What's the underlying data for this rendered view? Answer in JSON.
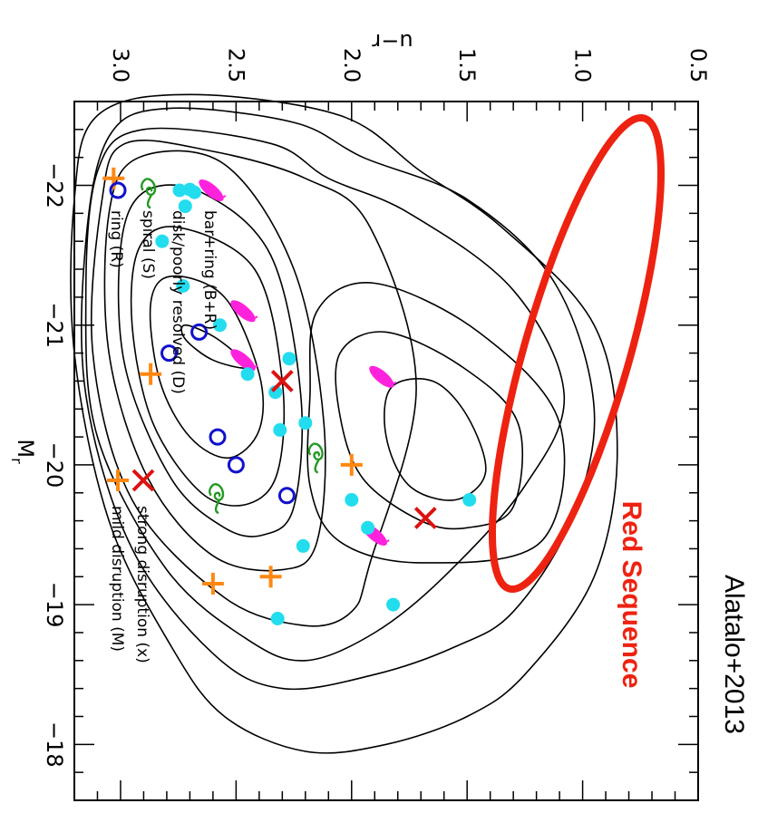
{
  "credit": "Alatalo+2013",
  "annotation_label": "Red Sequence",
  "colors": {
    "bar_ring": "#ff22dd",
    "disk": "#22ddee",
    "spiral": "#229922",
    "ring": "#1111cc",
    "strong": "#dd1111",
    "mild": "#ff8811",
    "red_sequence": "#ee2211",
    "contour": "#000000"
  },
  "chart_data": {
    "type": "scatter",
    "title": "",
    "xlabel": "M_r",
    "ylabel": "u−r",
    "xlabel_main": "M",
    "xlabel_sub": "r",
    "xlim": [
      -22.6,
      -17.6
    ],
    "ylim": [
      0.5,
      3.2
    ],
    "orientation": "rotated 90 degrees clockwise (M_r runs top to bottom, u−r runs right to left)",
    "xticks": [
      "−22",
      "−21",
      "−20",
      "−19",
      "−18"
    ],
    "yticks": [
      "0.5",
      "1.0",
      "1.5",
      "2.0",
      "2.5",
      "3.0"
    ],
    "legend": {
      "placement": "left",
      "entries": [
        {
          "key": "bar_ring",
          "label": "bar+ring (B+R)"
        },
        {
          "key": "disk",
          "label": "disk/poorly resolved (D)"
        },
        {
          "key": "spiral",
          "label": "spiral (S)"
        },
        {
          "key": "ring",
          "label": "ring (R)"
        }
      ],
      "disruption_entries": [
        {
          "key": "strong",
          "label": "strong disruption (x)"
        },
        {
          "key": "mild",
          "label": "mild disruption (M)"
        }
      ]
    },
    "series": [
      {
        "name": "bar+ring (B+R)",
        "marker": "bar_ring",
        "points": [
          [
            -21.1,
            2.47
          ],
          [
            -20.75,
            2.47
          ],
          [
            -20.63,
            1.87
          ],
          [
            -19.5,
            1.9
          ]
        ]
      },
      {
        "name": "disk/poorly resolved (D)",
        "marker": "disk",
        "points": [
          [
            -21.97,
            2.7
          ],
          [
            -21.95,
            2.68
          ],
          [
            -21.85,
            2.72
          ],
          [
            -21.6,
            2.82
          ],
          [
            -21.28,
            2.73
          ],
          [
            -21.0,
            2.57
          ],
          [
            -20.76,
            2.27
          ],
          [
            -20.65,
            2.45
          ],
          [
            -20.52,
            2.33
          ],
          [
            -20.3,
            2.2
          ],
          [
            -20.25,
            2.31
          ],
          [
            -19.75,
            2.0
          ],
          [
            -19.75,
            1.49
          ],
          [
            -19.55,
            1.93
          ],
          [
            -19.42,
            2.21
          ],
          [
            -19.0,
            1.82
          ],
          [
            -18.9,
            2.32
          ]
        ]
      },
      {
        "name": "spiral (S)",
        "marker": "spiral",
        "points": [
          [
            -20.07,
            2.15
          ],
          [
            -19.78,
            2.58
          ]
        ]
      },
      {
        "name": "ring (R)",
        "marker": "ring",
        "points": [
          [
            -20.95,
            2.66
          ],
          [
            -20.8,
            2.79
          ],
          [
            -20.0,
            2.5
          ],
          [
            -20.2,
            2.58
          ],
          [
            -19.78,
            2.28
          ]
        ]
      },
      {
        "name": "strong disruption (x)",
        "marker": "strong",
        "points": [
          [
            -20.6,
            2.3
          ],
          [
            -19.62,
            1.68
          ]
        ]
      },
      {
        "name": "mild disruption (M)",
        "marker": "mild",
        "points": [
          [
            -22.05,
            3.03
          ],
          [
            -20.65,
            2.87
          ],
          [
            -20.0,
            2.0
          ],
          [
            -19.2,
            2.35
          ],
          [
            -19.15,
            2.6
          ]
        ]
      }
    ],
    "contours": [
      [
        [
          -19.95,
          1.42
        ],
        [
          -20.35,
          1.5
        ],
        [
          -20.6,
          1.65
        ],
        [
          -20.55,
          1.83
        ],
        [
          -20.2,
          1.85
        ],
        [
          -19.85,
          1.75
        ],
        [
          -19.75,
          1.55
        ]
      ],
      [
        [
          -19.7,
          1.3
        ],
        [
          -20.3,
          1.28
        ],
        [
          -20.7,
          1.52
        ],
        [
          -20.95,
          1.85
        ],
        [
          -20.8,
          2.05
        ],
        [
          -20.35,
          2.05
        ],
        [
          -19.9,
          1.95
        ],
        [
          -19.6,
          1.7
        ],
        [
          -19.55,
          1.5
        ]
      ],
      [
        [
          -19.45,
          1.18
        ],
        [
          -20.3,
          1.1
        ],
        [
          -20.95,
          1.45
        ],
        [
          -21.3,
          1.9
        ],
        [
          -21.1,
          2.15
        ],
        [
          -20.5,
          2.18
        ],
        [
          -19.85,
          2.18
        ],
        [
          -19.45,
          2.05
        ],
        [
          -19.3,
          1.7
        ]
      ],
      [
        [
          -20.7,
          2.45
        ],
        [
          -20.9,
          2.58
        ],
        [
          -21.0,
          2.72
        ],
        [
          -20.9,
          2.72
        ],
        [
          -20.75,
          2.6
        ]
      ],
      [
        [
          -20.25,
          2.4
        ],
        [
          -20.65,
          2.4
        ],
        [
          -21.2,
          2.55
        ],
        [
          -21.35,
          2.78
        ],
        [
          -21.15,
          2.87
        ],
        [
          -20.6,
          2.83
        ],
        [
          -20.2,
          2.7
        ],
        [
          -20.05,
          2.53
        ]
      ],
      [
        [
          -19.95,
          2.32
        ],
        [
          -20.6,
          2.3
        ],
        [
          -21.4,
          2.42
        ],
        [
          -21.7,
          2.75
        ],
        [
          -21.55,
          2.92
        ],
        [
          -21.0,
          2.95
        ],
        [
          -20.3,
          2.86
        ],
        [
          -19.8,
          2.65
        ],
        [
          -19.72,
          2.45
        ]
      ],
      [
        [
          -19.7,
          2.25
        ],
        [
          -20.5,
          2.22
        ],
        [
          -21.5,
          2.35
        ],
        [
          -21.95,
          2.65
        ],
        [
          -21.95,
          2.9
        ],
        [
          -21.55,
          3.0
        ],
        [
          -20.7,
          2.98
        ],
        [
          -19.9,
          2.78
        ],
        [
          -19.55,
          2.55
        ],
        [
          -19.5,
          2.38
        ]
      ],
      [
        [
          -19.45,
          2.15
        ],
        [
          -20.3,
          2.12
        ],
        [
          -21.4,
          2.25
        ],
        [
          -22.15,
          2.55
        ],
        [
          -22.2,
          2.92
        ],
        [
          -21.8,
          3.05
        ],
        [
          -20.8,
          3.05
        ],
        [
          -19.9,
          2.88
        ],
        [
          -19.35,
          2.6
        ],
        [
          -19.25,
          2.3
        ]
      ],
      [
        [
          -19.3,
          1.92
        ],
        [
          -20.55,
          1.72
        ],
        [
          -21.7,
          1.92
        ],
        [
          -22.05,
          2.2
        ],
        [
          -22.25,
          2.62
        ],
        [
          -22.3,
          2.98
        ],
        [
          -21.9,
          3.08
        ],
        [
          -20.8,
          3.12
        ],
        [
          -19.75,
          2.95
        ],
        [
          -19.05,
          2.55
        ],
        [
          -18.85,
          2.2
        ],
        [
          -18.95,
          2.0
        ]
      ],
      [
        [
          -19.2,
          1.6
        ],
        [
          -19.85,
          1.25
        ],
        [
          -20.5,
          1.08
        ],
        [
          -21.25,
          1.3
        ],
        [
          -21.8,
          1.75
        ],
        [
          -22.05,
          2.1
        ],
        [
          -22.3,
          2.35
        ],
        [
          -22.4,
          2.9
        ],
        [
          -22.1,
          3.1
        ],
        [
          -21.2,
          3.15
        ],
        [
          -20.2,
          3.1
        ],
        [
          -19.25,
          2.8
        ],
        [
          -18.75,
          2.45
        ],
        [
          -18.6,
          2.2
        ],
        [
          -18.8,
          1.9
        ]
      ],
      [
        [
          -18.95,
          1.3
        ],
        [
          -19.6,
          1.05
        ],
        [
          -20.4,
          0.95
        ],
        [
          -21.3,
          1.12
        ],
        [
          -21.9,
          1.5
        ],
        [
          -22.2,
          1.95
        ],
        [
          -22.45,
          2.25
        ],
        [
          -22.55,
          2.8
        ],
        [
          -22.35,
          3.05
        ],
        [
          -21.6,
          3.15
        ],
        [
          -20.5,
          3.15
        ],
        [
          -19.4,
          2.95
        ],
        [
          -18.65,
          2.6
        ],
        [
          -18.4,
          2.3
        ],
        [
          -18.5,
          1.9
        ],
        [
          -18.7,
          1.55
        ]
      ],
      [
        [
          -18.5,
          1.25
        ],
        [
          -19.2,
          0.95
        ],
        [
          -20.1,
          0.85
        ],
        [
          -21.0,
          0.95
        ],
        [
          -21.7,
          1.35
        ],
        [
          -22.1,
          1.7
        ],
        [
          -22.5,
          2.05
        ],
        [
          -22.65,
          2.7
        ],
        [
          -22.5,
          3.1
        ],
        [
          -21.9,
          3.2
        ],
        [
          -20.8,
          3.2
        ],
        [
          -19.6,
          3.05
        ],
        [
          -18.7,
          2.78
        ],
        [
          -18.2,
          2.55
        ],
        [
          -17.95,
          2.2
        ],
        [
          -18.0,
          1.85
        ],
        [
          -18.2,
          1.5
        ]
      ]
    ]
  }
}
